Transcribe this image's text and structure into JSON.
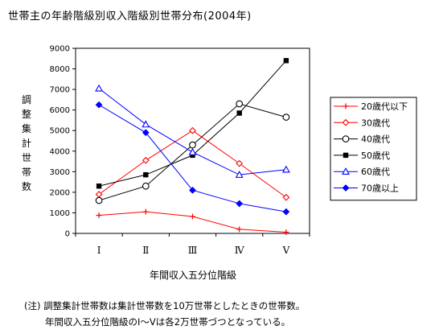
{
  "title": "世帯主の年齢階級別収入階級別世帯分布(2004年)",
  "notes": {
    "line1": "(注) 調整集計世帯数は集計世帯数を10万世帯としたときの世帯数。",
    "line2": "年間収入五分位階級のⅠ～Ⅴは各2万世帯づつとなっている。"
  },
  "chart_data": {
    "type": "line",
    "categories": [
      "Ⅰ",
      "Ⅱ",
      "Ⅲ",
      "Ⅳ",
      "Ⅴ"
    ],
    "xlabel": "年間収入五分位階級",
    "ylabel": "調整集計世帯数",
    "ylim": [
      0,
      9000
    ],
    "yticks": [
      0,
      1000,
      2000,
      3000,
      4000,
      5000,
      6000,
      7000,
      8000,
      9000
    ],
    "grid": false,
    "legend_position": "right",
    "series": [
      {
        "name": "20歳代以下",
        "color": "#ff0000",
        "marker": "plus",
        "values": [
          880,
          1050,
          820,
          200,
          60
        ]
      },
      {
        "name": "30歳代",
        "color": "#ff0000",
        "marker": "diamond-open",
        "values": [
          1900,
          3550,
          5000,
          3400,
          1750
        ]
      },
      {
        "name": "40歳代",
        "color": "#000000",
        "marker": "circle-open",
        "values": [
          1600,
          2300,
          4300,
          6300,
          5650
        ]
      },
      {
        "name": "50歳代",
        "color": "#000000",
        "marker": "square-filled",
        "values": [
          2300,
          2850,
          3800,
          5850,
          8400
        ]
      },
      {
        "name": "60歳代",
        "color": "#0000ff",
        "marker": "triangle-open",
        "values": [
          7050,
          5300,
          3950,
          2850,
          3100
        ]
      },
      {
        "name": "70歳以上",
        "color": "#0000ff",
        "marker": "diamond-filled",
        "values": [
          6250,
          4900,
          2100,
          1450,
          1050
        ]
      }
    ]
  }
}
